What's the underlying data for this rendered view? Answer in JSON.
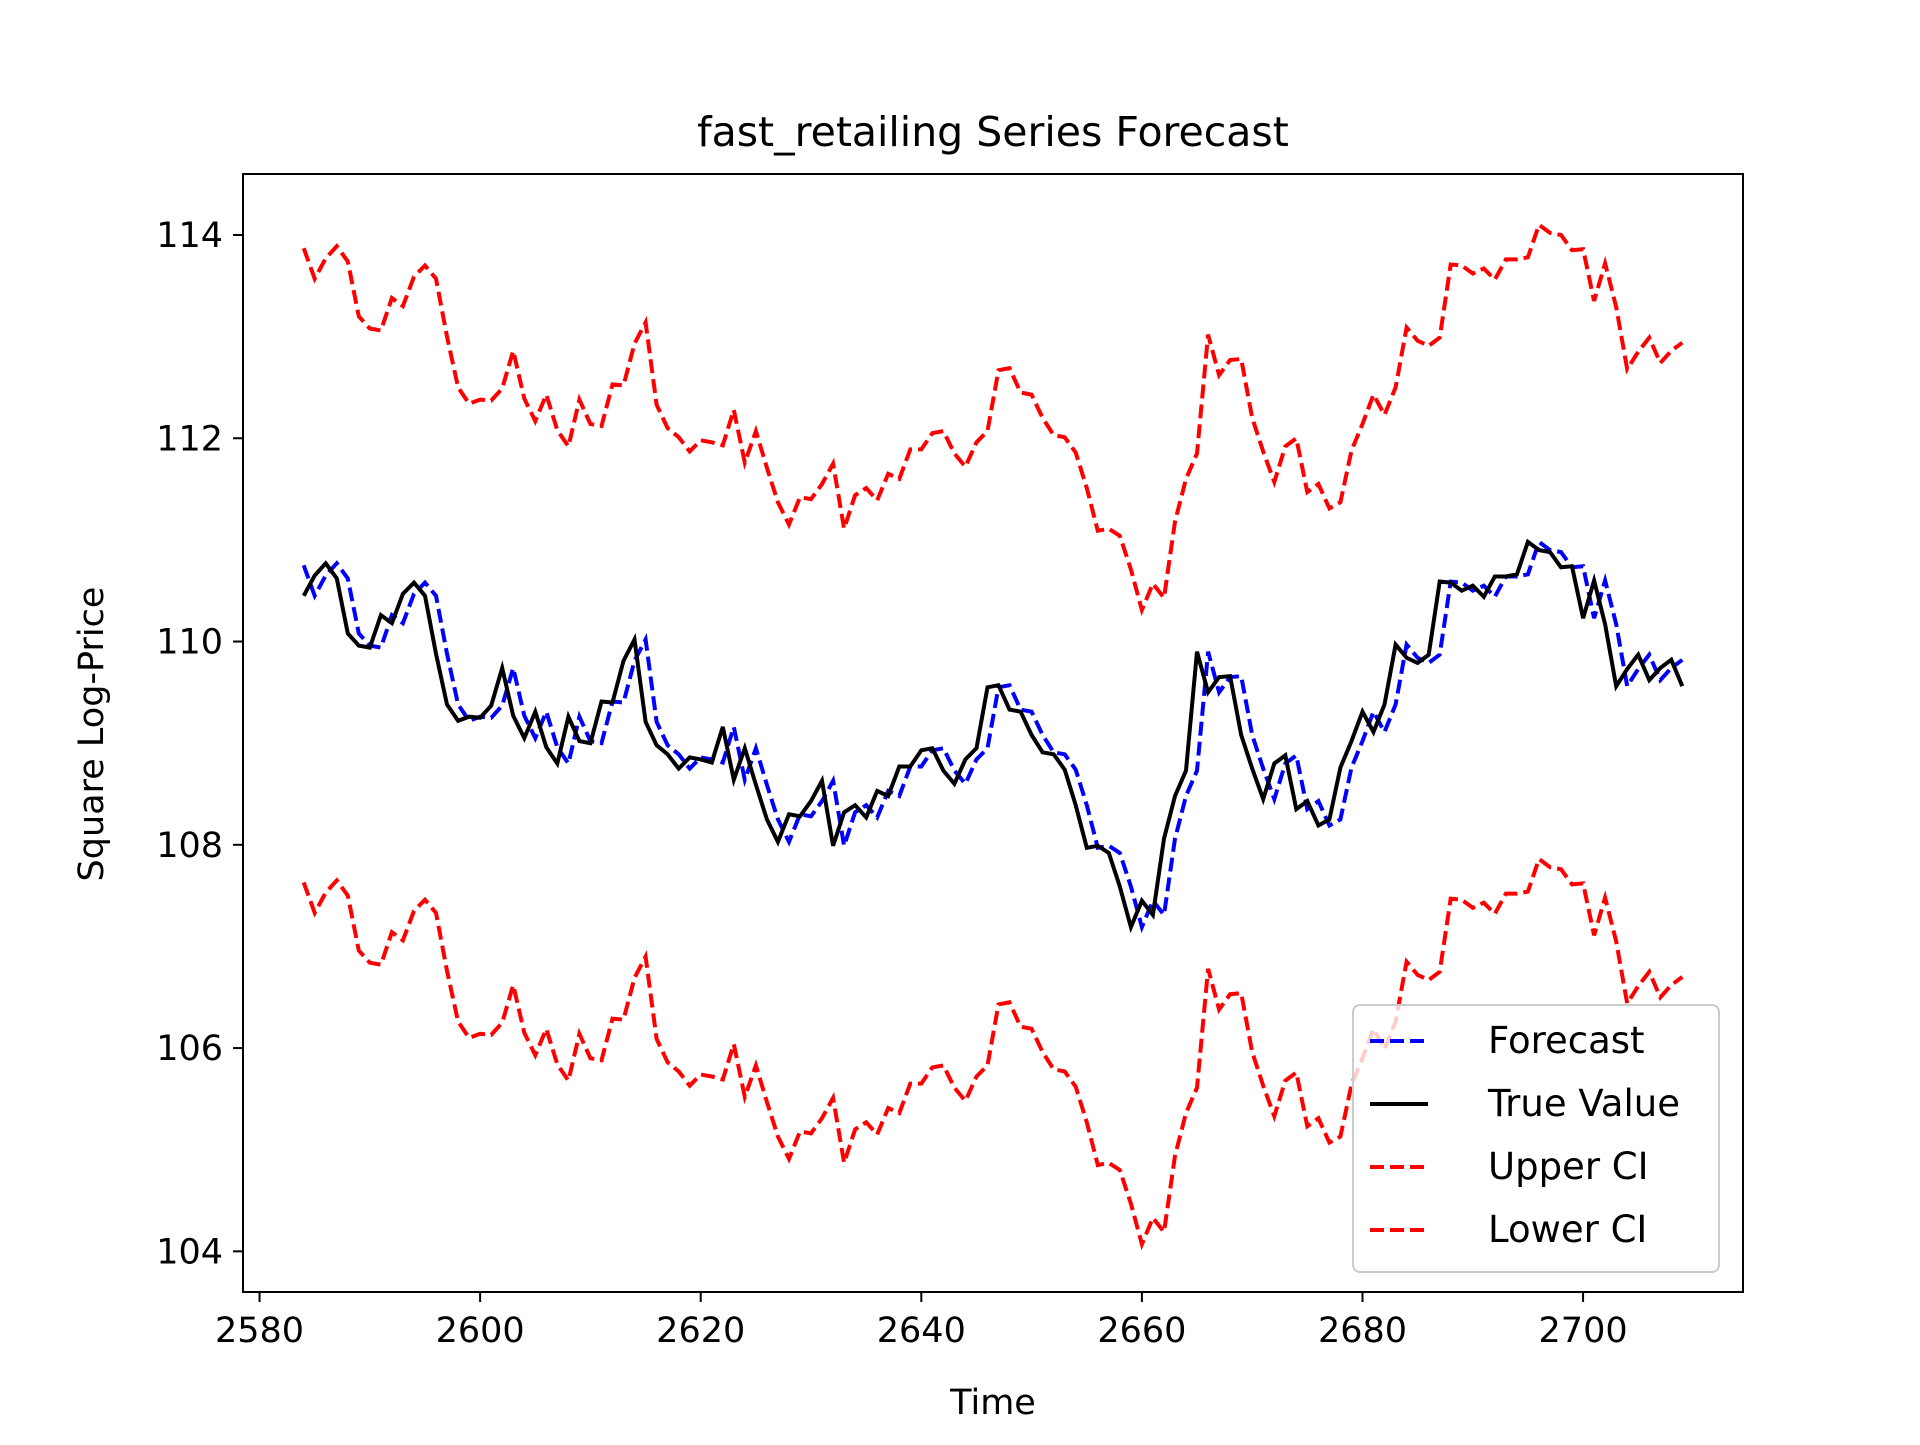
{
  "chart_data": {
    "type": "line",
    "title": "fast_retailing Series Forecast",
    "xlabel": "Time",
    "ylabel": "Square Log-Price",
    "xlim": [
      2578.5,
      2714.5
    ],
    "ylim": [
      103.6,
      114.6
    ],
    "x_ticks": [
      2580,
      2600,
      2620,
      2640,
      2660,
      2680,
      2700
    ],
    "y_ticks": [
      104,
      106,
      108,
      110,
      112,
      114
    ],
    "grid": false,
    "legend_position": "lower-right",
    "x_start": 2584,
    "true_values": [
      110.45,
      110.65,
      110.77,
      110.62,
      110.08,
      109.96,
      109.94,
      110.26,
      110.18,
      110.47,
      110.58,
      110.45,
      109.88,
      109.38,
      109.22,
      109.26,
      109.25,
      109.37,
      109.74,
      109.27,
      109.05,
      109.31,
      108.96,
      108.8,
      109.26,
      109.02,
      109.0,
      109.41,
      109.4,
      109.81,
      110.02,
      109.21,
      108.98,
      108.89,
      108.75,
      108.86,
      108.84,
      108.81,
      109.16,
      108.64,
      108.95,
      108.59,
      108.25,
      108.03,
      108.3,
      108.28,
      108.43,
      108.63,
      107.99,
      108.32,
      108.39,
      108.27,
      108.53,
      108.48,
      108.77,
      108.77,
      108.93,
      108.95,
      108.73,
      108.6,
      108.84,
      108.95,
      109.55,
      109.57,
      109.33,
      109.31,
      109.08,
      108.91,
      108.89,
      108.74,
      108.39,
      107.97,
      107.99,
      107.92,
      107.59,
      107.19,
      107.45,
      107.31,
      108.06,
      108.48,
      108.73,
      109.9,
      109.5,
      109.65,
      109.66,
      109.08,
      108.75,
      108.45,
      108.8,
      108.88,
      108.35,
      108.43,
      108.19,
      108.25,
      108.76,
      109.02,
      109.31,
      109.11,
      109.38,
      109.97,
      109.84,
      109.79,
      109.87,
      110.59,
      110.58,
      110.5,
      110.55,
      110.44,
      110.64,
      110.64,
      110.66,
      110.98,
      110.9,
      110.88,
      110.73,
      110.74,
      110.23,
      110.6,
      110.17,
      109.56,
      109.73,
      109.87,
      109.62,
      109.74,
      109.82,
      109.56
    ],
    "forecast_offset": 0.82,
    "ci_half_width": 3.12,
    "legend": [
      "Forecast",
      "True Value",
      "Upper CI",
      "Lower CI"
    ],
    "colors": {
      "forecast": "#0000ff",
      "true_value": "#000000",
      "upper_ci": "#ff0000",
      "lower_ci": "#ff0000"
    }
  }
}
